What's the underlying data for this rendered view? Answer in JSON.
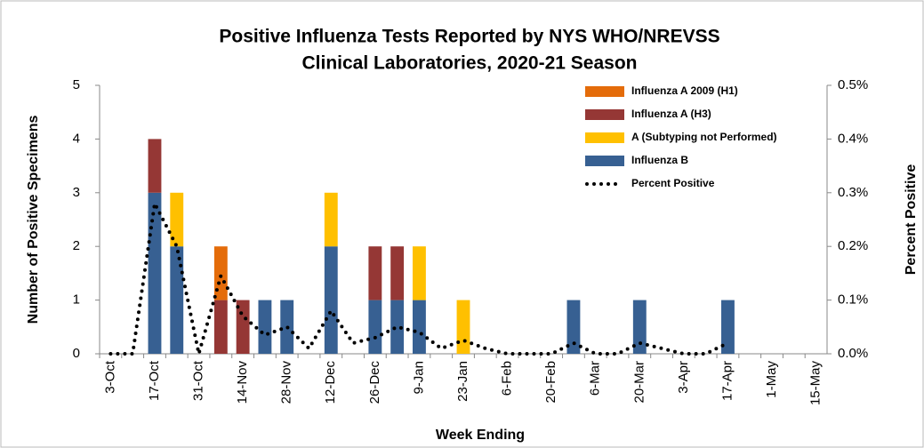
{
  "chart_data": {
    "type": "bar",
    "title": [
      "Positive Influenza Tests Reported by NYS WHO/NREVSS",
      "Clinical Laboratories, 2020-21 Season"
    ],
    "xlabel": "Week Ending",
    "ylabel": "Number of Positive Specimens",
    "y2label": "Percent Positive",
    "categories": [
      "3-Oct",
      null,
      "17-Oct",
      null,
      "31-Oct",
      null,
      "14-Nov",
      null,
      "28-Nov",
      null,
      "12-Dec",
      null,
      "26-Dec",
      null,
      "9-Jan",
      null,
      "23-Jan",
      null,
      "6-Feb",
      null,
      "20-Feb",
      null,
      "6-Mar",
      null,
      "20-Mar",
      null,
      "3-Apr",
      null,
      "17-Apr",
      null,
      "1-May",
      null,
      "15-May"
    ],
    "series": [
      {
        "name": "Influenza A 2009 (H1)",
        "color": "#e46c0a",
        "values": [
          0,
          0,
          0,
          0,
          0,
          1,
          0,
          0,
          0,
          0,
          0,
          0,
          0,
          0,
          0,
          0,
          0,
          0,
          0,
          0,
          0,
          0,
          0,
          0,
          0,
          0,
          0,
          0,
          0,
          0,
          0,
          0,
          0
        ]
      },
      {
        "name": "Influenza A (H3)",
        "color": "#953735",
        "values": [
          0,
          0,
          1,
          0,
          0,
          1,
          1,
          0,
          0,
          0,
          0,
          0,
          1,
          1,
          0,
          0,
          0,
          0,
          0,
          0,
          0,
          0,
          0,
          0,
          0,
          0,
          0,
          0,
          0,
          0,
          0,
          0,
          0
        ]
      },
      {
        "name": "A (Subtyping not Performed)",
        "color": "#ffc000",
        "values": [
          0,
          0,
          0,
          1,
          0,
          0,
          0,
          0,
          0,
          0,
          1,
          0,
          0,
          0,
          1,
          0,
          1,
          0,
          0,
          0,
          0,
          0,
          0,
          0,
          0,
          0,
          0,
          0,
          0,
          0,
          0,
          0,
          0
        ]
      },
      {
        "name": "Influenza B",
        "color": "#376092",
        "values": [
          0,
          0,
          3,
          2,
          0,
          0,
          0,
          1,
          1,
          0,
          2,
          0,
          1,
          1,
          1,
          0,
          0,
          0,
          0,
          0,
          0,
          1,
          0,
          0,
          1,
          0,
          0,
          0,
          1,
          0,
          0,
          0,
          0
        ]
      },
      {
        "name": "Percent Positive",
        "color": "#000000",
        "type": "line",
        "axis": "y2",
        "values": [
          0,
          0,
          0.28,
          0.2,
          0,
          0.145,
          0.07,
          0.035,
          0.05,
          0.01,
          0.08,
          0.02,
          0.03,
          0.05,
          0.04,
          0.01,
          0.025,
          0.01,
          0,
          0,
          0,
          0.02,
          0,
          0,
          0.02,
          0.01,
          0,
          0,
          0.02,
          null,
          null,
          null,
          null
        ]
      }
    ],
    "ylim": [
      0,
      5
    ],
    "yticks": [
      0,
      1,
      2,
      3,
      4,
      5
    ],
    "y2lim": [
      0,
      0.5
    ],
    "y2ticks": [
      {
        "value": 0,
        "label": "0.0%"
      },
      {
        "value": 0.1,
        "label": "0.1%"
      },
      {
        "value": 0.2,
        "label": "0.2%"
      },
      {
        "value": 0.3,
        "label": "0.3%"
      },
      {
        "value": 0.4,
        "label": "0.4%"
      },
      {
        "value": 0.5,
        "label": "0.5%"
      }
    ]
  }
}
